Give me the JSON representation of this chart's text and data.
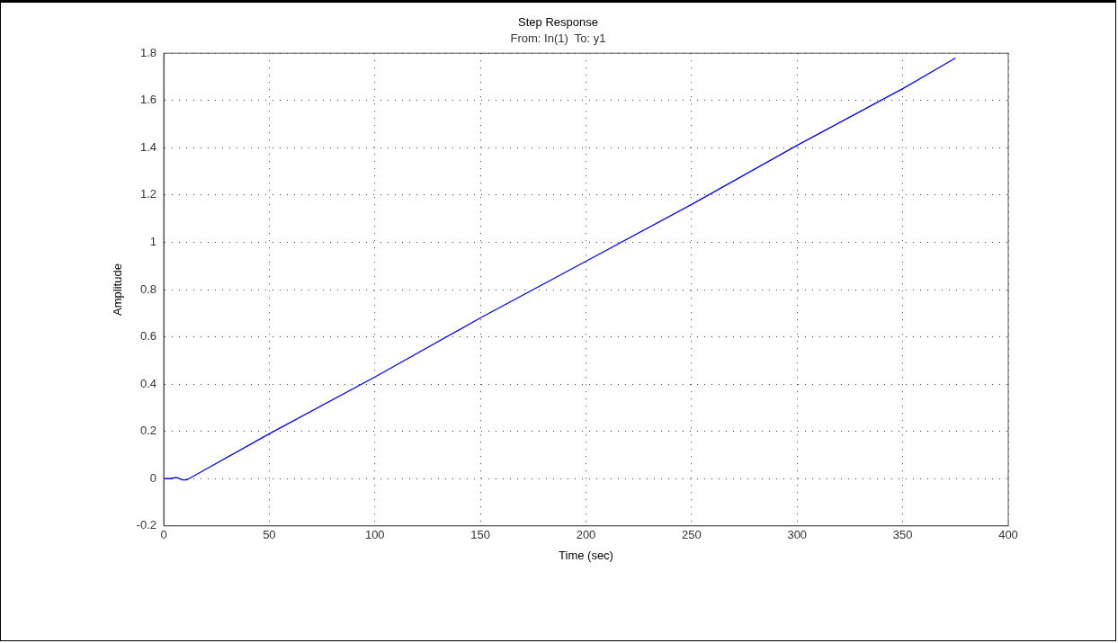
{
  "chart_data": {
    "type": "line",
    "title": "Step Response",
    "subtitle": "From: In(1)  To: y1",
    "xlabel": "Time (sec)",
    "ylabel": "Amplitude",
    "x": [
      0,
      3,
      6,
      9,
      11,
      20,
      50,
      100,
      150,
      200,
      250,
      300,
      350,
      375
    ],
    "series": [
      {
        "color": "#0000ff",
        "values": [
          0,
          0,
          0.005,
          -0.005,
          -0.005,
          0.04,
          0.19,
          0.43,
          0.68,
          0.92,
          1.16,
          1.41,
          1.65,
          1.78
        ]
      }
    ],
    "xlim": [
      0,
      400
    ],
    "xticks": [
      0,
      50,
      100,
      150,
      200,
      250,
      300,
      350,
      400
    ],
    "ylim": [
      -0.2,
      1.8
    ],
    "yticks": [
      -0.2,
      0,
      0.2,
      0.4,
      0.6,
      0.8,
      1,
      1.2,
      1.4,
      1.6,
      1.8
    ],
    "grid": true,
    "legend": false,
    "marker": "none",
    "line_style": "solid"
  }
}
